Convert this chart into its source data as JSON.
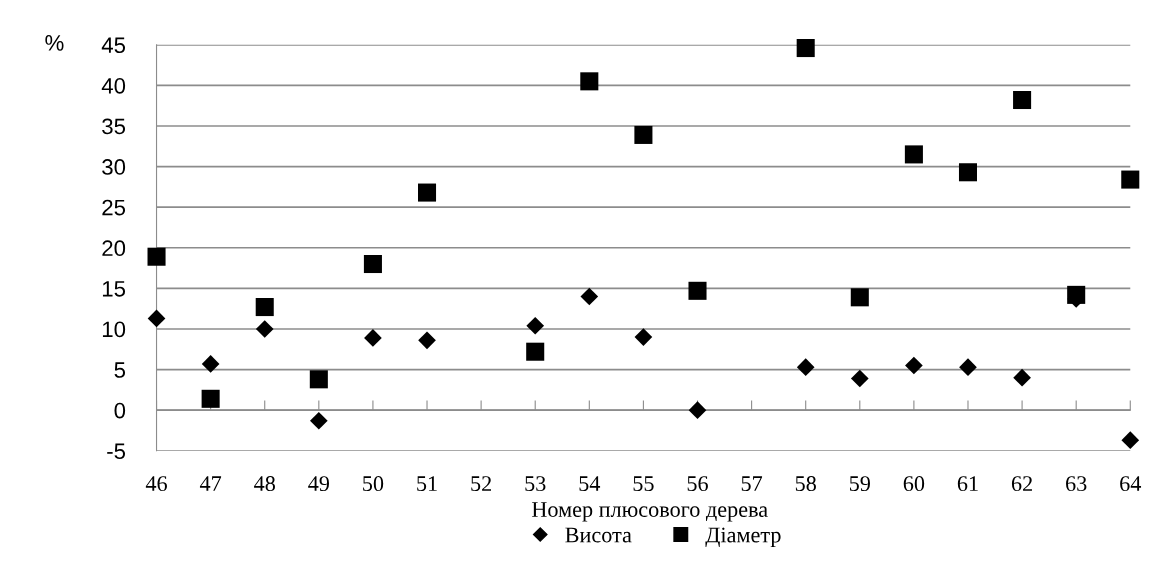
{
  "chart_data": {
    "type": "scatter",
    "xlabel": "Номер плюсового дерева",
    "ylabel": "%",
    "categories": [
      "46",
      "47",
      "48",
      "49",
      "50",
      "51",
      "52",
      "53",
      "54",
      "55",
      "56",
      "57",
      "58",
      "59",
      "60",
      "61",
      "62",
      "63",
      "64"
    ],
    "series": [
      {
        "name": "Висота",
        "color": "#000000",
        "marker": "diamond",
        "values": [
          11.3,
          5.7,
          10.0,
          -1.3,
          8.9,
          8.6,
          null,
          10.4,
          14.0,
          9.0,
          0,
          null,
          5.3,
          3.9,
          5.5,
          5.3,
          4.0,
          13.7,
          -3.7
        ]
      },
      {
        "name": "Діаметр",
        "color": "#000000",
        "marker": "square",
        "values": [
          18.9,
          1.4,
          12.7,
          3.8,
          18.0,
          26.8,
          null,
          7.2,
          40.5,
          33.9,
          14.7,
          null,
          44.6,
          13.9,
          31.5,
          29.3,
          38.2,
          14.2,
          28.4
        ]
      }
    ],
    "ylim": [
      -5,
      45
    ],
    "yticks": [
      -5,
      0,
      5,
      10,
      15,
      20,
      25,
      30,
      35,
      40,
      45
    ],
    "grid": "y",
    "legend": "bottom"
  }
}
